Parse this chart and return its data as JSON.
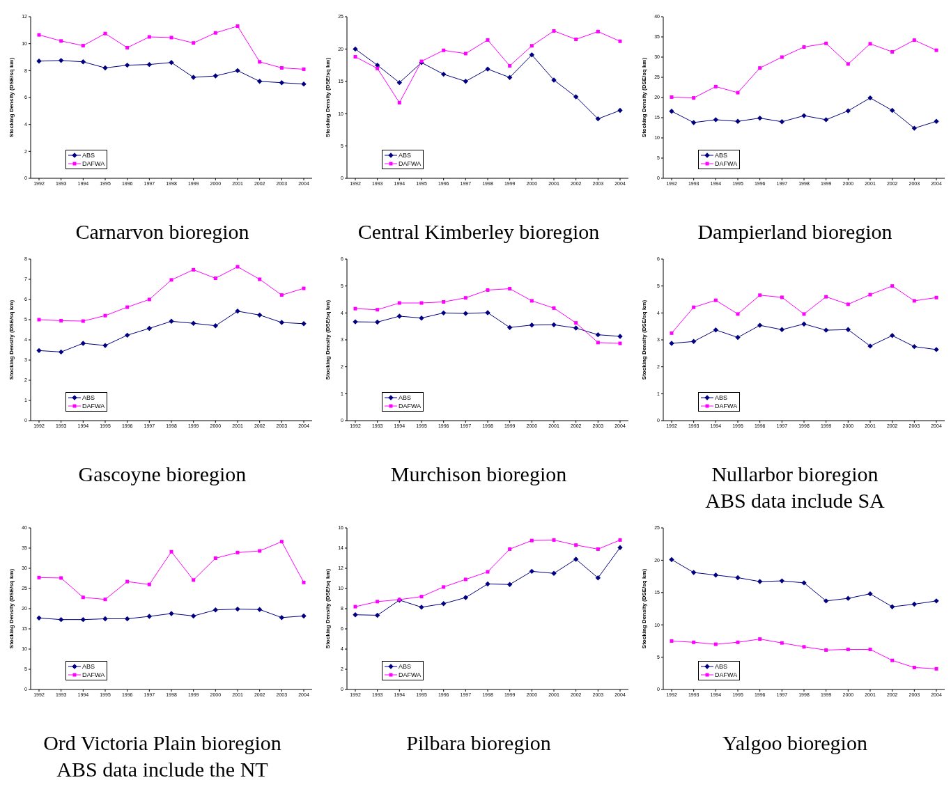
{
  "chart_data": [
    {
      "type": "line",
      "title": "Carnarvon bioregion",
      "ylabel": "Stocking Density (DSE/sq km)",
      "categories": [
        "1992",
        "1993",
        "1994",
        "1995",
        "1996",
        "1997",
        "1998",
        "1999",
        "2000",
        "2001",
        "2002",
        "2003",
        "2004"
      ],
      "ylim": [
        0,
        12
      ],
      "yticks": [
        0,
        2,
        4,
        6,
        8,
        10,
        12
      ],
      "legend": "bottom left",
      "grid": false,
      "series": [
        {
          "name": "ABS",
          "color": "#000080",
          "marker": "diamond",
          "values": [
            8.7,
            8.75,
            8.65,
            8.2,
            8.4,
            8.45,
            8.6,
            7.5,
            7.6,
            8.0,
            7.2,
            7.1,
            7.0
          ]
        },
        {
          "name": "DAFWA",
          "color": "#ff00ff",
          "marker": "square",
          "values": [
            10.65,
            10.2,
            9.85,
            10.75,
            9.7,
            10.5,
            10.45,
            10.05,
            10.8,
            11.3,
            8.65,
            8.2,
            8.1
          ]
        }
      ]
    },
    {
      "type": "line",
      "title": "Central Kimberley bioregion",
      "ylabel": "Stocking Density (DSE/sq km)",
      "categories": [
        "1992",
        "1993",
        "1994",
        "1995",
        "1996",
        "1997",
        "1998",
        "1999",
        "2000",
        "2001",
        "2002",
        "2003",
        "2004"
      ],
      "ylim": [
        0,
        25
      ],
      "yticks": [
        0,
        5,
        10,
        15,
        20,
        25
      ],
      "legend": "bottom left",
      "grid": false,
      "series": [
        {
          "name": "ABS",
          "color": "#000080",
          "marker": "diamond",
          "values": [
            20,
            17.5,
            14.8,
            17.9,
            16.1,
            15,
            16.9,
            15.6,
            19.1,
            15.2,
            12.6,
            9.2,
            10.5
          ]
        },
        {
          "name": "DAFWA",
          "color": "#ff00ff",
          "marker": "square",
          "values": [
            18.8,
            17,
            11.7,
            18.1,
            19.8,
            19.3,
            21.4,
            17.4,
            20.5,
            22.8,
            21.5,
            22.7,
            21.2
          ]
        }
      ]
    },
    {
      "type": "line",
      "title": "Dampierland bioregion",
      "ylabel": "Stocking Density (DSE/sq km)",
      "categories": [
        "1992",
        "1993",
        "1994",
        "1995",
        "1996",
        "1997",
        "1998",
        "1999",
        "2000",
        "2001",
        "2002",
        "2003",
        "2004"
      ],
      "ylim": [
        0,
        40
      ],
      "yticks": [
        0,
        5,
        10,
        15,
        20,
        25,
        30,
        35,
        40
      ],
      "legend": "bottom left",
      "grid": false,
      "series": [
        {
          "name": "ABS",
          "color": "#000080",
          "marker": "diamond",
          "values": [
            16.6,
            13.8,
            14.5,
            14.1,
            14.9,
            14.0,
            15.5,
            14.5,
            16.7,
            19.9,
            16.8,
            12.4,
            14.1
          ]
        },
        {
          "name": "DAFWA",
          "color": "#ff00ff",
          "marker": "square",
          "values": [
            20.1,
            19.9,
            22.7,
            21.2,
            27.3,
            30,
            32.5,
            33.4,
            28.3,
            33.3,
            31.3,
            34.2,
            31.7
          ]
        }
      ]
    },
    {
      "type": "line",
      "title": "Gascoyne bioregion",
      "ylabel": "Stocking Density (DSE/sq km)",
      "categories": [
        "1992",
        "1993",
        "1994",
        "1995",
        "1996",
        "1997",
        "1998",
        "1999",
        "2000",
        "2001",
        "2002",
        "2003",
        "2004"
      ],
      "ylim": [
        0,
        8
      ],
      "yticks": [
        0,
        1,
        2,
        3,
        4,
        5,
        6,
        7,
        8
      ],
      "legend": "bottom left",
      "grid": false,
      "series": [
        {
          "name": "ABS",
          "color": "#000080",
          "marker": "diamond",
          "values": [
            3.47,
            3.4,
            3.83,
            3.72,
            4.23,
            4.57,
            4.92,
            4.82,
            4.7,
            5.42,
            5.23,
            4.86,
            4.8
          ]
        },
        {
          "name": "DAFWA",
          "color": "#ff00ff",
          "marker": "square",
          "values": [
            5.0,
            4.95,
            4.93,
            5.2,
            5.62,
            6.0,
            6.97,
            7.47,
            7.05,
            7.62,
            7.0,
            6.22,
            6.55
          ]
        }
      ]
    },
    {
      "type": "line",
      "title": "Murchison bioregion",
      "ylabel": "Stocking Density (DSE/sq km)",
      "categories": [
        "1992",
        "1993",
        "1994",
        "1995",
        "1996",
        "1997",
        "1998",
        "1999",
        "2000",
        "2001",
        "2002",
        "2003",
        "2004"
      ],
      "ylim": [
        0,
        6
      ],
      "yticks": [
        0,
        1,
        2,
        3,
        4,
        5,
        6
      ],
      "legend": "bottom left",
      "grid": false,
      "series": [
        {
          "name": "ABS",
          "color": "#000080",
          "marker": "diamond",
          "values": [
            3.67,
            3.66,
            3.88,
            3.81,
            4.0,
            3.98,
            4.01,
            3.46,
            3.55,
            3.56,
            3.44,
            3.19,
            3.13
          ]
        },
        {
          "name": "DAFWA",
          "color": "#ff00ff",
          "marker": "square",
          "values": [
            4.16,
            4.12,
            4.37,
            4.37,
            4.41,
            4.56,
            4.85,
            4.9,
            4.45,
            4.18,
            3.63,
            2.9,
            2.87
          ]
        }
      ]
    },
    {
      "type": "line",
      "title": "Nullarbor bioregion",
      "subtitle": "ABS data include SA",
      "ylabel": "Stocking Density (DSE/sq km)",
      "categories": [
        "1992",
        "1993",
        "1994",
        "1995",
        "1996",
        "1997",
        "1998",
        "1999",
        "2000",
        "2001",
        "2002",
        "2003",
        "2004"
      ],
      "ylim": [
        0,
        6
      ],
      "yticks": [
        0,
        1,
        2,
        3,
        4,
        5,
        6
      ],
      "legend": "bottom left",
      "grid": false,
      "series": [
        {
          "name": "ABS",
          "color": "#000080",
          "marker": "diamond",
          "values": [
            2.87,
            2.94,
            3.37,
            3.09,
            3.54,
            3.38,
            3.59,
            3.36,
            3.38,
            2.77,
            3.16,
            2.75,
            2.64
          ]
        },
        {
          "name": "DAFWA",
          "color": "#ff00ff",
          "marker": "square",
          "values": [
            3.25,
            4.21,
            4.47,
            3.96,
            4.66,
            4.58,
            3.96,
            4.6,
            4.32,
            4.68,
            5.0,
            4.45,
            4.57
          ]
        }
      ]
    },
    {
      "type": "line",
      "title": "Ord Victoria Plain bioregion",
      "subtitle": "ABS data include the NT",
      "ylabel": "Stocking Density (DSE/sq km)",
      "categories": [
        "1992",
        "1993",
        "1994",
        "1995",
        "1996",
        "1997",
        "1998",
        "1999",
        "2000",
        "2001",
        "2002",
        "2003",
        "2004"
      ],
      "ylim": [
        0,
        40
      ],
      "yticks": [
        0,
        5,
        10,
        15,
        20,
        25,
        30,
        35,
        40
      ],
      "legend": "bottom left",
      "grid": false,
      "series": [
        {
          "name": "ABS",
          "color": "#000080",
          "marker": "diamond",
          "values": [
            17.7,
            17.3,
            17.3,
            17.5,
            17.5,
            18.1,
            18.8,
            18.2,
            19.7,
            19.9,
            19.8,
            17.8,
            18.2
          ]
        },
        {
          "name": "DAFWA",
          "color": "#ff00ff",
          "marker": "square",
          "values": [
            27.7,
            27.6,
            22.8,
            22.3,
            26.7,
            26.0,
            34.1,
            27.1,
            32.5,
            33.9,
            34.3,
            36.6,
            26.5
          ]
        }
      ]
    },
    {
      "type": "line",
      "title": "Pilbara bioregion",
      "ylabel": "Stocking Density (DSE/sq km)",
      "categories": [
        "1992",
        "1993",
        "1994",
        "1995",
        "1996",
        "1997",
        "1998",
        "1999",
        "2000",
        "2001",
        "2002",
        "2003",
        "2004"
      ],
      "ylim": [
        0,
        16
      ],
      "yticks": [
        0,
        2,
        4,
        6,
        8,
        10,
        12,
        14,
        16
      ],
      "legend": "bottom left",
      "grid": false,
      "series": [
        {
          "name": "ABS",
          "color": "#000080",
          "marker": "diamond",
          "values": [
            7.4,
            7.35,
            8.85,
            8.15,
            8.5,
            9.1,
            10.45,
            10.4,
            11.7,
            11.5,
            12.9,
            11.05,
            14.05
          ]
        },
        {
          "name": "DAFWA",
          "color": "#ff00ff",
          "marker": "square",
          "values": [
            8.2,
            8.7,
            8.9,
            9.2,
            10.15,
            10.9,
            11.65,
            13.9,
            14.75,
            14.8,
            14.3,
            13.9,
            14.8
          ]
        }
      ]
    },
    {
      "type": "line",
      "title": "Yalgoo bioregion",
      "ylabel": "Stocking Density (DSE/sq km)",
      "categories": [
        "1992",
        "1993",
        "1994",
        "1995",
        "1996",
        "1997",
        "1998",
        "1999",
        "2000",
        "2001",
        "2002",
        "2003",
        "2004"
      ],
      "ylim": [
        0,
        25
      ],
      "yticks": [
        0,
        5,
        10,
        15,
        20,
        25
      ],
      "legend": "bottom left",
      "grid": false,
      "series": [
        {
          "name": "ABS",
          "color": "#000080",
          "marker": "diamond",
          "values": [
            20.1,
            18.1,
            17.7,
            17.3,
            16.7,
            16.8,
            16.5,
            13.7,
            14.1,
            14.8,
            12.8,
            13.2,
            13.7
          ]
        },
        {
          "name": "DAFWA",
          "color": "#ff00ff",
          "marker": "square",
          "values": [
            7.5,
            7.3,
            7.0,
            7.3,
            7.8,
            7.2,
            6.6,
            6.1,
            6.2,
            6.2,
            4.5,
            3.4,
            3.2
          ]
        }
      ]
    }
  ]
}
